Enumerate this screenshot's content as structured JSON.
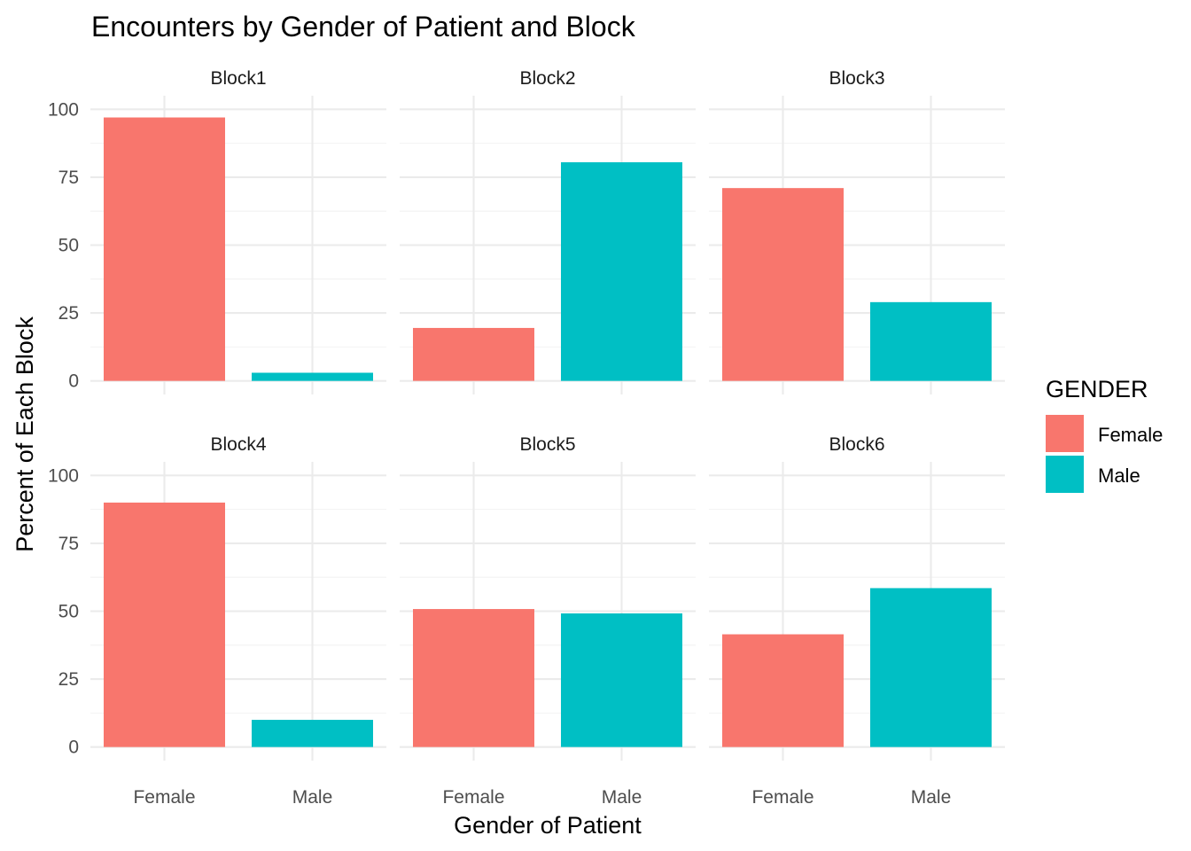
{
  "chart_data": {
    "type": "bar",
    "title": "Encounters by Gender of Patient and Block",
    "xlabel": "Gender of Patient",
    "ylabel": "Percent of Each Block",
    "categories": [
      "Female",
      "Male"
    ],
    "ylim": [
      0,
      100
    ],
    "yticks": [
      "0",
      "25",
      "50",
      "75",
      "100"
    ],
    "grid": true,
    "facets": [
      {
        "name": "Block1",
        "values": [
          97,
          3
        ]
      },
      {
        "name": "Block2",
        "values": [
          19.5,
          80.5
        ]
      },
      {
        "name": "Block3",
        "values": [
          71,
          29
        ]
      },
      {
        "name": "Block4",
        "values": [
          90,
          10
        ]
      },
      {
        "name": "Block5",
        "values": [
          50.8,
          49.2
        ]
      },
      {
        "name": "Block6",
        "values": [
          41.5,
          58.5
        ]
      }
    ],
    "legend": {
      "title": "GENDER",
      "position": "right",
      "entries": [
        {
          "label": "Female",
          "color": "#F8766D"
        },
        {
          "label": "Male",
          "color": "#00BFC4"
        }
      ]
    }
  }
}
